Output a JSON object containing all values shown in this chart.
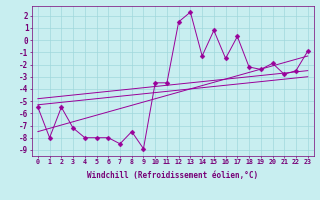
{
  "xlabel": "Windchill (Refroidissement éolien,°C)",
  "xlim": [
    -0.5,
    23.5
  ],
  "ylim": [
    -9.5,
    2.8
  ],
  "bg_color": "#c8eef0",
  "grid_color": "#a0d8dc",
  "line_color": "#990099",
  "scatter_x": [
    0,
    1,
    2,
    3,
    4,
    5,
    6,
    7,
    8,
    9,
    10,
    11,
    12,
    13,
    14,
    15,
    16,
    17,
    18,
    19,
    20,
    21,
    22,
    23
  ],
  "scatter_y": [
    -5.5,
    -8.0,
    -5.5,
    -7.2,
    -8.0,
    -8.0,
    -8.0,
    -8.5,
    -7.5,
    -8.9,
    -3.5,
    -3.5,
    1.5,
    2.3,
    -1.3,
    0.8,
    -1.5,
    0.3,
    -2.2,
    -2.4,
    -1.9,
    -2.8,
    -2.5,
    -0.9
  ],
  "reg_line1": [
    0,
    -5.3,
    23,
    -3.0
  ],
  "reg_line2": [
    0,
    -4.8,
    23,
    -2.5
  ],
  "reg_line3": [
    0,
    -7.5,
    23,
    -1.3
  ],
  "yticks": [
    -9,
    -8,
    -7,
    -6,
    -5,
    -4,
    -3,
    -2,
    -1,
    0,
    1,
    2
  ],
  "xticks": [
    0,
    1,
    2,
    3,
    4,
    5,
    6,
    7,
    8,
    9,
    10,
    11,
    12,
    13,
    14,
    15,
    16,
    17,
    18,
    19,
    20,
    21,
    22,
    23
  ],
  "tick_color": "#770077",
  "xlabel_fontsize": 5.5,
  "xtick_fontsize": 4.8,
  "ytick_fontsize": 5.5,
  "marker_size": 2.5,
  "lw": 0.7
}
